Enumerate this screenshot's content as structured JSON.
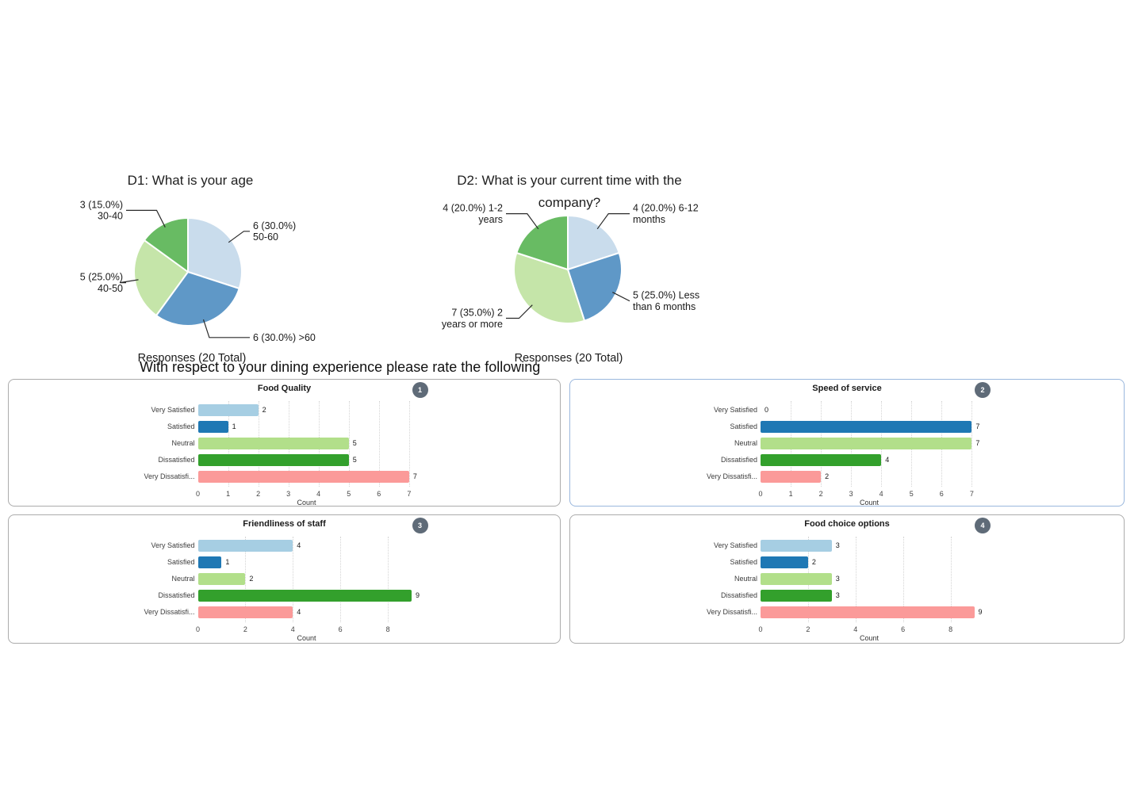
{
  "section_heading": "With respect to your dining experience please rate the following",
  "colors": {
    "background": "#ffffff",
    "card_border": "#ababab",
    "card_border_selected": "#9ab7dd",
    "badge_bg": "#5f6b78",
    "badge_text": "#ffffff",
    "gridline": "#d4d4d4",
    "leader_line": "#2a2a2a",
    "text": "#1a1a1a"
  },
  "chart_data": [
    {
      "type": "pie",
      "id": "D1",
      "title_lines": [
        "D1: What is your age"
      ],
      "caption": "Responses (20 Total)",
      "total_responses": 20,
      "slices": [
        {
          "category": "50-60",
          "value": 6,
          "pct": 30.0,
          "color": "#c9dcec",
          "label_lines": [
            "6 (30.0%)",
            "50-60"
          ]
        },
        {
          "category": ">60",
          "value": 6,
          "pct": 30.0,
          "color": "#5f98c7",
          "label_lines": [
            "6 (30.0%) >60"
          ]
        },
        {
          "category": "40-50",
          "value": 5,
          "pct": 25.0,
          "color": "#c5e5a9",
          "label_lines": [
            "5 (25.0%)",
            "40-50"
          ]
        },
        {
          "category": "30-40",
          "value": 3,
          "pct": 15.0,
          "color": "#68bb63",
          "label_lines": [
            "3 (15.0%)",
            "30-40"
          ]
        }
      ]
    },
    {
      "type": "pie",
      "id": "D2",
      "title_lines": [
        "D2: What is your current time with the",
        "company?"
      ],
      "caption": "Responses (20 Total)",
      "total_responses": 20,
      "slices": [
        {
          "category": "6-12 months",
          "value": 4,
          "pct": 20.0,
          "color": "#c9dcec",
          "label_lines": [
            "4 (20.0%) 6-12",
            "months"
          ]
        },
        {
          "category": "Less than 6 months",
          "value": 5,
          "pct": 25.0,
          "color": "#5f98c7",
          "label_lines": [
            "5 (25.0%) Less",
            "than 6 months"
          ]
        },
        {
          "category": "2 years or more",
          "value": 7,
          "pct": 35.0,
          "color": "#c5e5a9",
          "label_lines": [
            "7 (35.0%) 2",
            "years or more"
          ]
        },
        {
          "category": "1-2 years",
          "value": 4,
          "pct": 20.0,
          "color": "#68bb63",
          "label_lines": [
            "4 (20.0%) 1-2",
            "years"
          ]
        }
      ]
    },
    {
      "type": "bar",
      "orientation": "horizontal",
      "badge": "1",
      "title": "Food Quality",
      "xlabel": "Count",
      "categories": [
        "Very Satisfied",
        "Satisfied",
        "Neutral",
        "Dissatisfied",
        "Very Dissatisfi..."
      ],
      "values": [
        2,
        1,
        5,
        5,
        7
      ],
      "bar_colors": [
        "#a6cee3",
        "#1f78b4",
        "#b2df8a",
        "#33a02c",
        "#fb9a99"
      ],
      "ticks": [
        0,
        1,
        2,
        3,
        4,
        5,
        6,
        7
      ],
      "xlim": [
        0,
        7.2
      ],
      "grid": true,
      "selected": false
    },
    {
      "type": "bar",
      "orientation": "horizontal",
      "badge": "2",
      "title": "Speed of service",
      "xlabel": "Count",
      "categories": [
        "Very Satisfied",
        "Satisfied",
        "Neutral",
        "Dissatisfied",
        "Very Dissatisfi..."
      ],
      "values": [
        0,
        7,
        7,
        4,
        2
      ],
      "bar_colors": [
        "#a6cee3",
        "#1f78b4",
        "#b2df8a",
        "#33a02c",
        "#fb9a99"
      ],
      "ticks": [
        0,
        1,
        2,
        3,
        4,
        5,
        6,
        7
      ],
      "xlim": [
        0,
        7.2
      ],
      "grid": true,
      "selected": true
    },
    {
      "type": "bar",
      "orientation": "horizontal",
      "badge": "3",
      "title": "Friendliness of staff",
      "xlabel": "Count",
      "categories": [
        "Very Satisfied",
        "Satisfied",
        "Neutral",
        "Dissatisfied",
        "Very Dissatisfi..."
      ],
      "values": [
        4,
        1,
        2,
        9,
        4
      ],
      "bar_colors": [
        "#a6cee3",
        "#1f78b4",
        "#b2df8a",
        "#33a02c",
        "#fb9a99"
      ],
      "ticks": [
        0,
        2,
        4,
        6,
        8
      ],
      "xlim": [
        0,
        9.15
      ],
      "grid": true,
      "selected": false
    },
    {
      "type": "bar",
      "orientation": "horizontal",
      "badge": "4",
      "title": "Food choice options",
      "xlabel": "Count",
      "categories": [
        "Very Satisfied",
        "Satisfied",
        "Neutral",
        "Dissatisfied",
        "Very Dissatisfi..."
      ],
      "values": [
        3,
        2,
        3,
        3,
        9
      ],
      "bar_colors": [
        "#a6cee3",
        "#1f78b4",
        "#b2df8a",
        "#33a02c",
        "#fb9a99"
      ],
      "ticks": [
        0,
        2,
        4,
        6,
        8
      ],
      "xlim": [
        0,
        9.15
      ],
      "grid": true,
      "selected": false
    }
  ]
}
